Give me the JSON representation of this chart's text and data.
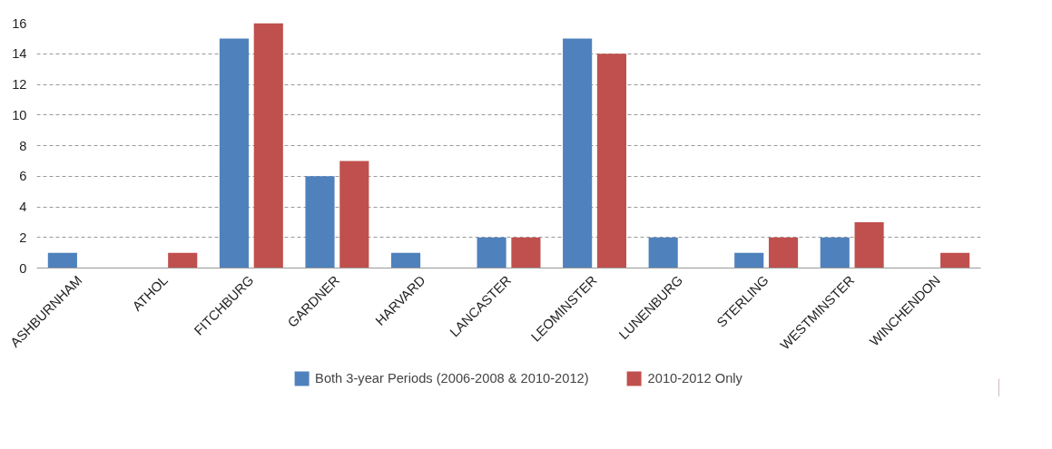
{
  "chart_data": {
    "type": "bar",
    "categories": [
      "ASHBURNHAM",
      "ATHOL",
      "FITCHBURG",
      "GARDNER",
      "HARVARD",
      "LANCASTER",
      "LEOMINSTER",
      "LUNENBURG",
      "STERLING",
      "WESTMINSTER",
      "WINCHENDON"
    ],
    "series": [
      {
        "name": "Both 3-year Periods (2006-2008 & 2010-2012)",
        "color": "#4f81bd",
        "values": [
          1,
          0,
          15,
          6,
          1,
          2,
          15,
          2,
          1,
          2,
          0
        ]
      },
      {
        "name": "2010-2012 Only",
        "color": "#c0504d",
        "values": [
          0,
          1,
          16,
          7,
          0,
          2,
          14,
          0,
          2,
          3,
          1
        ]
      }
    ],
    "ylim": [
      0,
      16
    ],
    "yticks": [
      0,
      2,
      4,
      6,
      8,
      10,
      12,
      14,
      16
    ],
    "grid": "y",
    "legend": "bottom"
  }
}
